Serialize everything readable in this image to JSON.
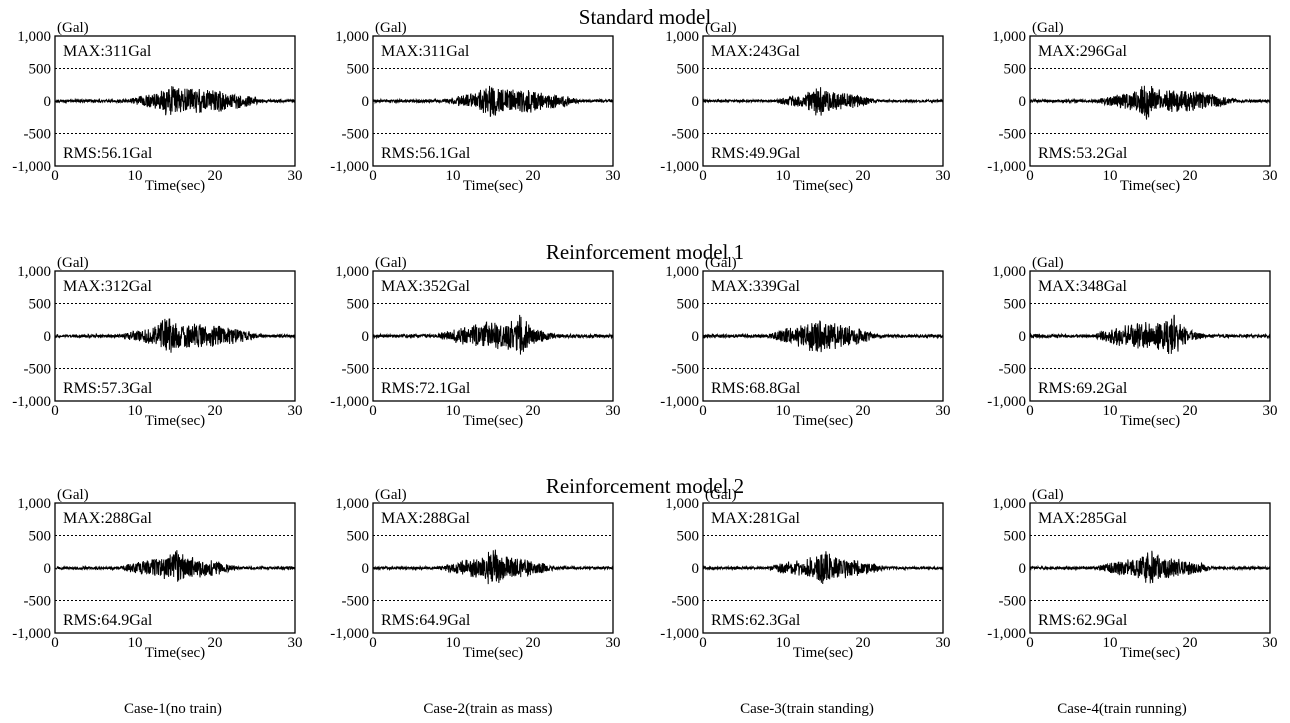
{
  "figure": {
    "rows": [
      {
        "title": "Standard model"
      },
      {
        "title": "Reinforcement model 1"
      },
      {
        "title": "Reinforcement model 2"
      }
    ],
    "case_labels": [
      "Case-1(no train)",
      "Case-2(train as mass)",
      "Case-3(train standing)",
      "Case-4(train running)"
    ]
  },
  "chart_data": [
    {
      "type": "line",
      "row": "Standard model",
      "case": "Case-1(no train)",
      "title": "",
      "xlabel": "Time(sec)",
      "ylabel": "(Gal)",
      "xlim": [
        0,
        30
      ],
      "ylim": [
        -1000,
        1000
      ],
      "xticks": [
        "0",
        "10",
        "20",
        "30"
      ],
      "yticks": [
        "1,000",
        "500",
        "0",
        "-500",
        "-1,000"
      ],
      "reference_lines": [
        500,
        -500
      ],
      "max_label": "MAX:311Gal",
      "rms_label": "RMS:56.1Gal",
      "max_gal": 311,
      "rms_gal": 56.1,
      "strong_motion_sec": [
        9,
        26
      ],
      "peak_time_sec": 14.5
    },
    {
      "type": "line",
      "row": "Standard model",
      "case": "Case-2(train as mass)",
      "title": "",
      "xlabel": "Time(sec)",
      "ylabel": "(Gal)",
      "xlim": [
        0,
        30
      ],
      "ylim": [
        -1000,
        1000
      ],
      "xticks": [
        "0",
        "10",
        "20",
        "30"
      ],
      "yticks": [
        "1,000",
        "500",
        "0",
        "-500",
        "-1,000"
      ],
      "reference_lines": [
        500,
        -500
      ],
      "max_label": "MAX:311Gal",
      "rms_label": "RMS:56.1Gal",
      "max_gal": 311,
      "rms_gal": 56.1,
      "strong_motion_sec": [
        9,
        26
      ],
      "peak_time_sec": 14.5
    },
    {
      "type": "line",
      "row": "Standard model",
      "case": "Case-3(train standing)",
      "title": "",
      "xlabel": "Time(sec)",
      "ylabel": "(Gal)",
      "xlim": [
        0,
        30
      ],
      "ylim": [
        -1000,
        1000
      ],
      "xticks": [
        "0",
        "10",
        "20",
        "30"
      ],
      "yticks": [
        "1,000",
        "500",
        "0",
        "-500",
        "-1,000"
      ],
      "reference_lines": [
        500,
        -500
      ],
      "max_label": "MAX:243Gal",
      "rms_label": "RMS:49.9Gal",
      "max_gal": 243,
      "rms_gal": 49.9,
      "strong_motion_sec": [
        9,
        22
      ],
      "peak_time_sec": 14.2
    },
    {
      "type": "line",
      "row": "Standard model",
      "case": "Case-4(train running)",
      "title": "",
      "xlabel": "Time(sec)",
      "ylabel": "(Gal)",
      "xlim": [
        0,
        30
      ],
      "ylim": [
        -1000,
        1000
      ],
      "xticks": [
        "0",
        "10",
        "20",
        "30"
      ],
      "yticks": [
        "1,000",
        "500",
        "0",
        "-500",
        "-1,000"
      ],
      "reference_lines": [
        500,
        -500
      ],
      "max_label": "MAX:296Gal",
      "rms_label": "RMS:53.2Gal",
      "max_gal": 296,
      "rms_gal": 53.2,
      "strong_motion_sec": [
        8,
        26
      ],
      "peak_time_sec": 14.5
    },
    {
      "type": "line",
      "row": "Reinforcement model 1",
      "case": "Case-1(no train)",
      "title": "",
      "xlabel": "Time(sec)",
      "ylabel": "(Gal)",
      "xlim": [
        0,
        30
      ],
      "ylim": [
        -1000,
        1000
      ],
      "xticks": [
        "0",
        "10",
        "20",
        "30"
      ],
      "yticks": [
        "1,000",
        "500",
        "0",
        "-500",
        "-1,000"
      ],
      "reference_lines": [
        500,
        -500
      ],
      "max_label": "MAX:312Gal",
      "rms_label": "RMS:57.3Gal",
      "max_gal": 312,
      "rms_gal": 57.3,
      "strong_motion_sec": [
        8,
        26
      ],
      "peak_time_sec": 14
    },
    {
      "type": "line",
      "row": "Reinforcement model 1",
      "case": "Case-2(train as mass)",
      "title": "",
      "xlabel": "Time(sec)",
      "ylabel": "(Gal)",
      "xlim": [
        0,
        30
      ],
      "ylim": [
        -1000,
        1000
      ],
      "xticks": [
        "0",
        "10",
        "20",
        "30"
      ],
      "yticks": [
        "1,000",
        "500",
        "0",
        "-500",
        "-1,000"
      ],
      "reference_lines": [
        500,
        -500
      ],
      "max_label": "MAX:352Gal",
      "rms_label": "RMS:72.1Gal",
      "max_gal": 352,
      "rms_gal": 72.1,
      "strong_motion_sec": [
        8,
        23
      ],
      "peak_time_sec": 18.5
    },
    {
      "type": "line",
      "row": "Reinforcement model 1",
      "case": "Case-3(train standing)",
      "title": "",
      "xlabel": "Time(sec)",
      "ylabel": "(Gal)",
      "xlim": [
        0,
        30
      ],
      "ylim": [
        -1000,
        1000
      ],
      "xticks": [
        "0",
        "10",
        "20",
        "30"
      ],
      "yticks": [
        "1,000",
        "500",
        "0",
        "-500",
        "-1,000"
      ],
      "reference_lines": [
        500,
        -500
      ],
      "max_label": "MAX:339Gal",
      "rms_label": "RMS:68.8Gal",
      "max_gal": 339,
      "rms_gal": 68.8,
      "strong_motion_sec": [
        8,
        22
      ],
      "peak_time_sec": 14
    },
    {
      "type": "line",
      "row": "Reinforcement model 1",
      "case": "Case-4(train running)",
      "title": "",
      "xlabel": "Time(sec)",
      "ylabel": "(Gal)",
      "xlim": [
        0,
        30
      ],
      "ylim": [
        -1000,
        1000
      ],
      "xticks": [
        "0",
        "10",
        "20",
        "30"
      ],
      "yticks": [
        "1,000",
        "500",
        "0",
        "-500",
        "-1,000"
      ],
      "reference_lines": [
        500,
        -500
      ],
      "max_label": "MAX:348Gal",
      "rms_label": "RMS:69.2Gal",
      "max_gal": 348,
      "rms_gal": 69.2,
      "strong_motion_sec": [
        8,
        22
      ],
      "peak_time_sec": 18
    },
    {
      "type": "line",
      "row": "Reinforcement model 2",
      "case": "Case-1(no train)",
      "title": "",
      "xlabel": "Time(sec)",
      "ylabel": "(Gal)",
      "xlim": [
        0,
        30
      ],
      "ylim": [
        -1000,
        1000
      ],
      "xticks": [
        "0",
        "10",
        "20",
        "30"
      ],
      "yticks": [
        "1,000",
        "500",
        "0",
        "-500",
        "-1,000"
      ],
      "reference_lines": [
        500,
        -500
      ],
      "max_label": "MAX:288Gal",
      "rms_label": "RMS:64.9Gal",
      "max_gal": 288,
      "rms_gal": 64.9,
      "strong_motion_sec": [
        8,
        23
      ],
      "peak_time_sec": 15
    },
    {
      "type": "line",
      "row": "Reinforcement model 2",
      "case": "Case-2(train as mass)",
      "title": "",
      "xlabel": "Time(sec)",
      "ylabel": "(Gal)",
      "xlim": [
        0,
        30
      ],
      "ylim": [
        -1000,
        1000
      ],
      "xticks": [
        "0",
        "10",
        "20",
        "30"
      ],
      "yticks": [
        "1,000",
        "500",
        "0",
        "-500",
        "-1,000"
      ],
      "reference_lines": [
        500,
        -500
      ],
      "max_label": "MAX:288Gal",
      "rms_label": "RMS:64.9Gal",
      "max_gal": 288,
      "rms_gal": 64.9,
      "strong_motion_sec": [
        8,
        23
      ],
      "peak_time_sec": 15
    },
    {
      "type": "line",
      "row": "Reinforcement model 2",
      "case": "Case-3(train standing)",
      "title": "",
      "xlabel": "Time(sec)",
      "ylabel": "(Gal)",
      "xlim": [
        0,
        30
      ],
      "ylim": [
        -1000,
        1000
      ],
      "xticks": [
        "0",
        "10",
        "20",
        "30"
      ],
      "yticks": [
        "1,000",
        "500",
        "0",
        "-500",
        "-1,000"
      ],
      "reference_lines": [
        500,
        -500
      ],
      "max_label": "MAX:281Gal",
      "rms_label": "RMS:62.3Gal",
      "max_gal": 281,
      "rms_gal": 62.3,
      "strong_motion_sec": [
        8,
        23
      ],
      "peak_time_sec": 15
    },
    {
      "type": "line",
      "row": "Reinforcement model 2",
      "case": "Case-4(train running)",
      "title": "",
      "xlabel": "Time(sec)",
      "ylabel": "(Gal)",
      "xlim": [
        0,
        30
      ],
      "ylim": [
        -1000,
        1000
      ],
      "xticks": [
        "0",
        "10",
        "20",
        "30"
      ],
      "yticks": [
        "1,000",
        "500",
        "0",
        "-500",
        "-1,000"
      ],
      "reference_lines": [
        500,
        -500
      ],
      "max_label": "MAX:285Gal",
      "rms_label": "RMS:62.9Gal",
      "max_gal": 285,
      "rms_gal": 62.9,
      "strong_motion_sec": [
        8,
        23
      ],
      "peak_time_sec": 15
    }
  ]
}
